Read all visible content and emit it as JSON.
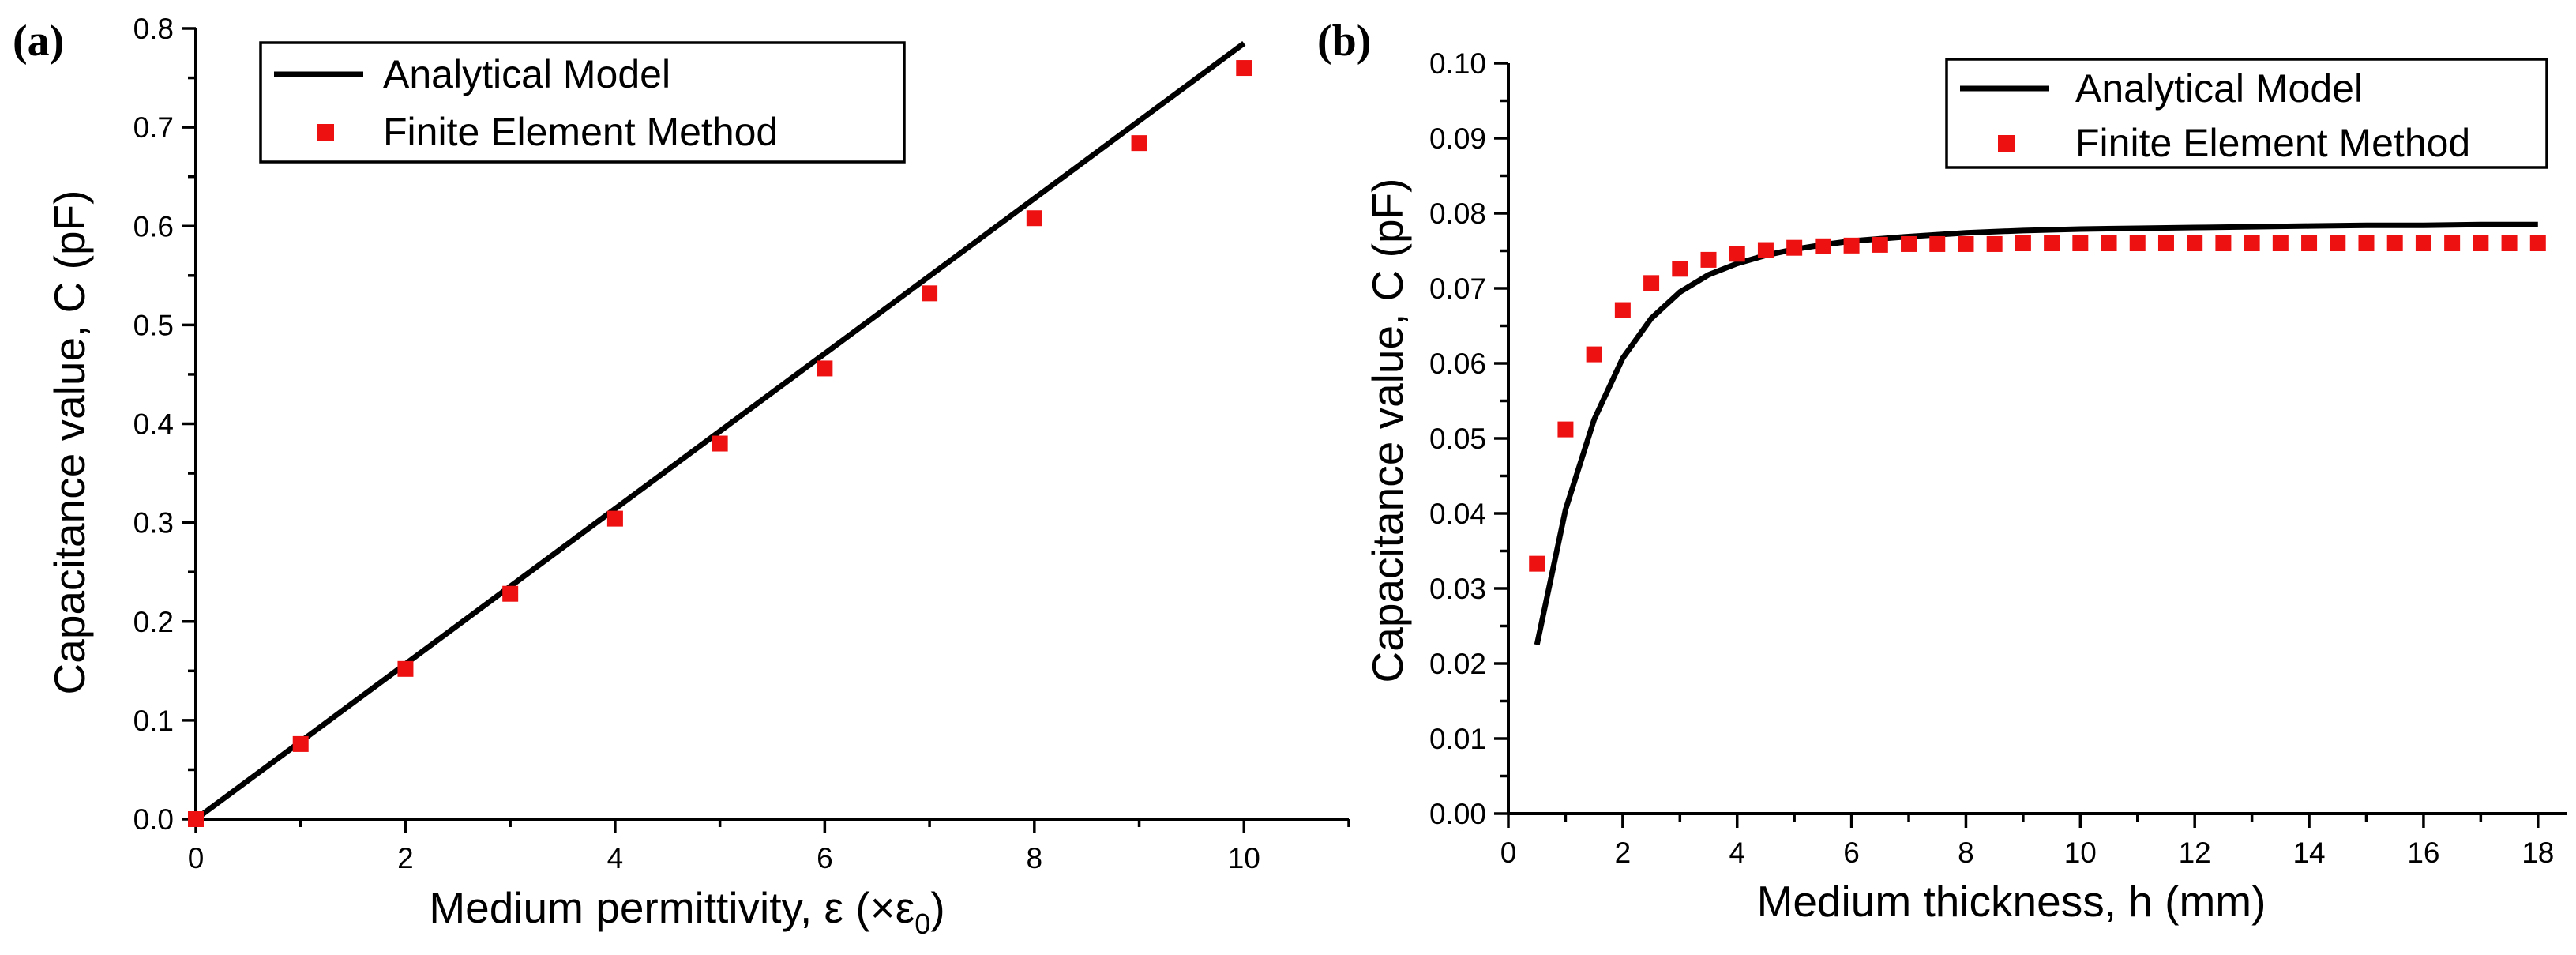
{
  "chart_data": [
    {
      "type": "line",
      "panel_label": "(a)",
      "xlabel": "Medium permittivity, ε (×ε",
      "xlabel_subscript": "0",
      "xlabel_suffix": ")",
      "ylabel": "Capacitance value, C (pF)",
      "xlim": [
        0,
        11
      ],
      "ylim": [
        0,
        0.8
      ],
      "xticks": [
        "0",
        "2",
        "4",
        "6",
        "8",
        "10"
      ],
      "yticks": [
        "0.0",
        "0.1",
        "0.2",
        "0.3",
        "0.4",
        "0.5",
        "0.6",
        "0.7",
        "0.8"
      ],
      "legend": [
        "Analytical Model",
        "Finite Element Method"
      ],
      "legend_position": "top-left",
      "series": [
        {
          "name": "Analytical Model",
          "style": "line",
          "color": "#000000",
          "x": [
            0,
            10
          ],
          "y": [
            0,
            0.785
          ]
        },
        {
          "name": "Finite Element Method",
          "style": "square-marker",
          "color": "#ee1111",
          "x": [
            0,
            1,
            2,
            3,
            4,
            5,
            6,
            7,
            8,
            9,
            10
          ],
          "y": [
            0,
            0.076,
            0.152,
            0.228,
            0.304,
            0.38,
            0.456,
            0.532,
            0.608,
            0.684,
            0.76
          ]
        }
      ]
    },
    {
      "type": "line",
      "panel_label": "(b)",
      "xlabel": "Medium thickness, h (mm)",
      "ylabel": "Capacitance value, C (pF)",
      "xlim": [
        0,
        18.5
      ],
      "ylim": [
        0,
        0.1
      ],
      "xticks": [
        "0",
        "2",
        "4",
        "6",
        "8",
        "10",
        "12",
        "14",
        "16",
        "18"
      ],
      "yticks": [
        "0.00",
        "0.01",
        "0.02",
        "0.03",
        "0.04",
        "0.05",
        "0.06",
        "0.07",
        "0.08",
        "0.09",
        "0.10"
      ],
      "legend": [
        "Analytical Model",
        "Finite Element Method"
      ],
      "legend_position": "top-right",
      "series": [
        {
          "name": "Analytical Model",
          "style": "line",
          "color": "#000000",
          "x": [
            0.5,
            1,
            1.5,
            2,
            2.5,
            3,
            3.5,
            4,
            4.5,
            5,
            5.5,
            6,
            7,
            8,
            9,
            10,
            11,
            12,
            13,
            14,
            15,
            16,
            17,
            18
          ],
          "y": [
            0.0225,
            0.0405,
            0.0525,
            0.0607,
            0.066,
            0.0695,
            0.0718,
            0.0733,
            0.0744,
            0.0752,
            0.0758,
            0.0763,
            0.0769,
            0.0774,
            0.0777,
            0.0779,
            0.078,
            0.0781,
            0.0782,
            0.0783,
            0.0784,
            0.0784,
            0.0785,
            0.0785
          ]
        },
        {
          "name": "Finite Element Method",
          "style": "square-marker",
          "color": "#ee1111",
          "x": [
            0.5,
            1,
            1.5,
            2,
            2.5,
            3,
            3.5,
            4,
            4.5,
            5,
            5.5,
            6,
            6.5,
            7,
            7.5,
            8,
            8.5,
            9,
            9.5,
            10,
            10.5,
            11,
            11.5,
            12,
            12.5,
            13,
            13.5,
            14,
            14.5,
            15,
            15.5,
            16,
            16.5,
            17,
            17.5,
            18
          ],
          "y": [
            0.0333,
            0.0512,
            0.0612,
            0.0671,
            0.0707,
            0.0726,
            0.0738,
            0.0746,
            0.0751,
            0.0754,
            0.0756,
            0.0757,
            0.0758,
            0.0759,
            0.0759,
            0.0759,
            0.0759,
            0.076,
            0.076,
            0.076,
            0.076,
            0.076,
            0.076,
            0.076,
            0.076,
            0.076,
            0.076,
            0.076,
            0.076,
            0.076,
            0.076,
            0.076,
            0.076,
            0.076,
            0.076,
            0.076
          ]
        }
      ]
    }
  ]
}
